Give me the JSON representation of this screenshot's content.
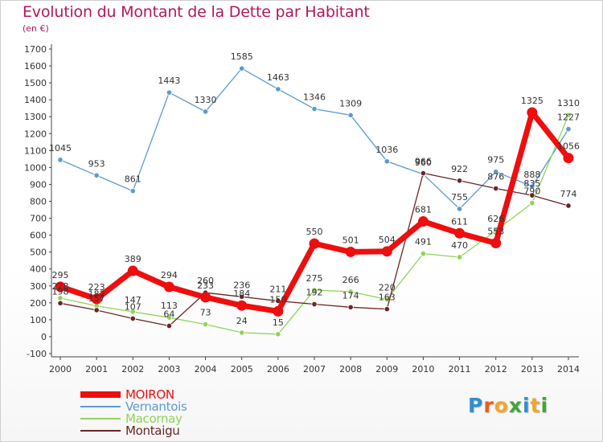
{
  "header": {
    "title": "Evolution du Montant de la Dette par Habitant",
    "subtitle": "(en €)"
  },
  "logo": {
    "letters": [
      "P",
      "r",
      "o",
      "x",
      "i",
      "t",
      "i"
    ],
    "colors": [
      "#2f8fd0",
      "#e8601c",
      "#f4a52a",
      "#3aa83a",
      "#2f8fd0",
      "#f4a52a",
      "#3aa83a"
    ]
  },
  "chart_data": {
    "type": "line",
    "x": [
      "2000",
      "2001",
      "2002",
      "2003",
      "2004",
      "2005",
      "2006",
      "2007",
      "2008",
      "2009",
      "2010",
      "2011",
      "2012",
      "2013",
      "2014"
    ],
    "yticks": [
      "-100",
      "0",
      "100",
      "200",
      "300",
      "400",
      "500",
      "600",
      "700",
      "800",
      "900",
      "1000",
      "1100",
      "1200",
      "1300",
      "1400",
      "1500",
      "1600",
      "1700"
    ],
    "ylim": [
      -100,
      1700
    ],
    "grid": false,
    "legend_position": "bottom-left",
    "series": [
      {
        "name": "Vernantois",
        "color": "#5b9bd0",
        "width": 1.3,
        "values": [
          1045,
          953,
          861,
          1443,
          1330,
          1585,
          1463,
          1346,
          1309,
          1036,
          960,
          755,
          975,
          888,
          1227
        ],
        "labels": [
          "1045",
          "953",
          "861",
          "1443",
          "1330",
          "1585",
          "1463",
          "1346",
          "1309",
          "1036",
          "960",
          "755",
          "975",
          "888",
          "1227"
        ]
      },
      {
        "name": "Macornay",
        "color": "#8fd45a",
        "width": 1.3,
        "values": [
          228,
          182,
          147,
          113,
          73,
          24,
          15,
          275,
          266,
          220,
          491,
          470,
          626,
          790,
          1310
        ],
        "labels": [
          "228",
          "182",
          "147",
          "113",
          "73",
          "24",
          "15",
          "275",
          "266",
          "220",
          "491",
          "470",
          "626",
          "790",
          "1310"
        ]
      },
      {
        "name": "Montaigu",
        "color": "#6b2424",
        "width": 1.3,
        "values": [
          198,
          157,
          107,
          64,
          260,
          236,
          211,
          192,
          174,
          163,
          966,
          922,
          876,
          835,
          774
        ],
        "labels": [
          "198",
          "157",
          "107",
          "64",
          "260",
          "236",
          "211",
          "192",
          "174",
          "163",
          "966",
          "922",
          "876",
          "835",
          "774"
        ]
      },
      {
        "name": "MOIRON",
        "color": "#ee0e0e",
        "width": 7,
        "values": [
          295,
          223,
          389,
          294,
          233,
          184,
          150,
          550,
          501,
          504,
          681,
          611,
          553,
          1325,
          1056
        ],
        "labels": [
          "295",
          "223",
          "389",
          "294",
          "233",
          "184",
          "150",
          "550",
          "501",
          "504",
          "681",
          "611",
          "553",
          "1325",
          "1056"
        ]
      }
    ],
    "legend_order": [
      "MOIRON",
      "Vernantois",
      "Macornay",
      "Montaigu"
    ]
  }
}
